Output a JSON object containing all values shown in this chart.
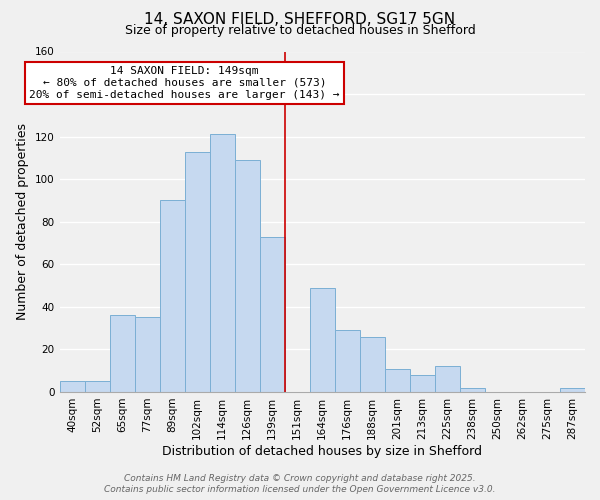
{
  "title": "14, SAXON FIELD, SHEFFORD, SG17 5GN",
  "subtitle": "Size of property relative to detached houses in Shefford",
  "xlabel": "Distribution of detached houses by size in Shefford",
  "ylabel": "Number of detached properties",
  "bin_labels": [
    "40sqm",
    "52sqm",
    "65sqm",
    "77sqm",
    "89sqm",
    "102sqm",
    "114sqm",
    "126sqm",
    "139sqm",
    "151sqm",
    "164sqm",
    "176sqm",
    "188sqm",
    "201sqm",
    "213sqm",
    "225sqm",
    "238sqm",
    "250sqm",
    "262sqm",
    "275sqm",
    "287sqm"
  ],
  "bar_heights": [
    5,
    5,
    36,
    35,
    90,
    113,
    121,
    109,
    73,
    0,
    49,
    29,
    26,
    11,
    8,
    12,
    2,
    0,
    0,
    0,
    2
  ],
  "bar_color": "#c6d9f0",
  "bar_edge_color": "#7bafd4",
  "vline_index": 9,
  "vline_color": "#cc0000",
  "ylim": [
    0,
    160
  ],
  "yticks": [
    0,
    20,
    40,
    60,
    80,
    100,
    120,
    140,
    160
  ],
  "annotation_title": "14 SAXON FIELD: 149sqm",
  "annotation_line1": "← 80% of detached houses are smaller (573)",
  "annotation_line2": "20% of semi-detached houses are larger (143) →",
  "annotation_box_color": "#ffffff",
  "annotation_box_edge": "#cc0000",
  "footer1": "Contains HM Land Registry data © Crown copyright and database right 2025.",
  "footer2": "Contains public sector information licensed under the Open Government Licence v3.0.",
  "background_color": "#f0f0f0",
  "plot_bg_color": "#f0f0f0",
  "grid_color": "#ffffff",
  "title_fontsize": 11,
  "subtitle_fontsize": 9,
  "axis_label_fontsize": 9,
  "tick_fontsize": 7.5,
  "annotation_fontsize": 8,
  "footer_fontsize": 6.5
}
